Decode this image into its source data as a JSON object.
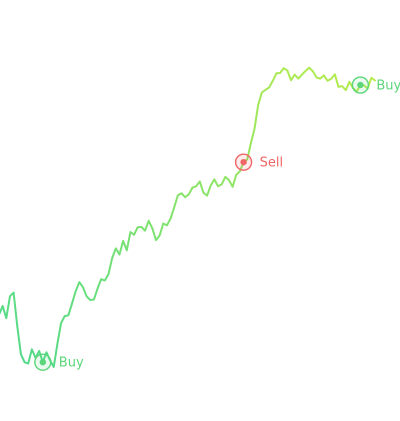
{
  "chart_data": {
    "type": "line",
    "title": "",
    "xlabel": "",
    "ylabel": "",
    "line_gradient": [
      "#4fd98c",
      "#b8ec4a"
    ],
    "values": [
      50.0,
      53.3,
      48.7,
      56.9,
      58.3,
      45.8,
      35.3,
      32.3,
      31.8,
      37.1,
      33.9,
      36.5,
      32.3,
      36.0,
      33.0,
      30.5,
      39.2,
      46.9,
      49.5,
      49.8,
      54.2,
      58.8,
      62.2,
      60.3,
      56.9,
      55.5,
      55.7,
      59.8,
      63.3,
      62.8,
      65.2,
      71.2,
      74.8,
      72.5,
      77.6,
      74.1,
      80.9,
      79.9,
      82.7,
      82.8,
      81.4,
      85.1,
      82.3,
      77.9,
      79.6,
      84.1,
      83.4,
      85.9,
      90.2,
      94.6,
      95.4,
      93.9,
      95.0,
      97.5,
      98.0,
      99.8,
      95.6,
      94.5,
      98.3,
      100.6,
      98.0,
      98.7,
      101.5,
      100.3,
      97.8,
      102.3,
      103.6,
      107.0,
      108.0,
      114.1,
      119.5,
      128.4,
      133.0,
      134.0,
      134.9,
      137.4,
      140.2,
      140.3,
      142.1,
      141.2,
      137.6,
      139.7,
      138.2,
      139.7,
      141.1,
      142.3,
      140.9,
      138.6,
      138.2,
      139.4,
      137.4,
      138.1,
      139.8,
      135.1,
      135.4,
      133.9,
      137.0,
      134.6,
      133.4,
      135.8,
      135.7,
      134.5,
      138.5,
      137.5
    ],
    "markers": [
      {
        "type": "buy",
        "label": "Buy",
        "index": 12,
        "color": "#5cd67a"
      },
      {
        "type": "sell",
        "label": "Sell",
        "index": 67,
        "color": "#f06565"
      },
      {
        "type": "buy",
        "label": "Buy",
        "index": 99,
        "color": "#5cd67a"
      }
    ]
  }
}
